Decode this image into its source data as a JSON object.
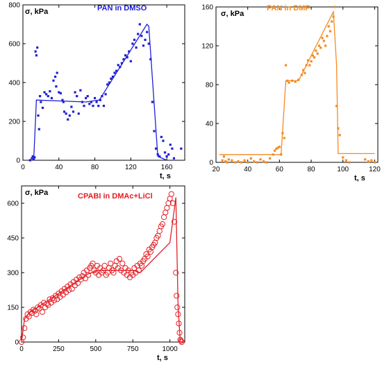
{
  "chart_data": [
    {
      "type": "scatter",
      "title": "PAN in DMSO",
      "xlabel": "t, s",
      "ylabel": "σ, kPa",
      "xlim": [
        0,
        180
      ],
      "ylim": [
        0,
        800
      ],
      "xticks": [
        0,
        40,
        80,
        120,
        160
      ],
      "yticks": [
        0,
        200,
        400,
        600,
        800
      ],
      "color": "#1f1fd6",
      "marker": "square",
      "grid": false,
      "series": [
        {
          "kind": "points",
          "x": [
            8,
            10,
            11,
            12,
            13,
            14,
            15,
            16,
            17,
            18,
            19,
            20,
            22,
            24,
            26,
            28,
            30,
            32,
            34,
            36,
            37,
            38,
            40,
            42,
            44,
            45,
            46,
            48,
            50,
            52,
            54,
            56,
            58,
            60,
            62,
            64,
            66,
            68,
            70,
            72,
            74,
            76,
            78,
            80,
            82,
            84,
            86,
            88,
            90,
            92,
            94,
            96,
            98,
            100,
            102,
            104,
            106,
            108,
            110,
            112,
            114,
            116,
            118,
            120,
            122,
            124,
            126,
            128,
            130,
            132,
            134,
            136,
            138,
            140,
            142,
            144,
            146,
            148,
            150,
            152,
            154,
            156,
            158,
            160,
            162,
            164,
            166,
            168,
            176
          ],
          "y": [
            0,
            10,
            20,
            5,
            15,
            560,
            540,
            580,
            230,
            160,
            330,
            300,
            270,
            350,
            340,
            330,
            355,
            320,
            410,
            430,
            380,
            450,
            350,
            345,
            310,
            300,
            250,
            240,
            210,
            230,
            275,
            250,
            350,
            330,
            240,
            360,
            300,
            280,
            320,
            330,
            290,
            300,
            280,
            320,
            300,
            280,
            310,
            330,
            280,
            340,
            390,
            400,
            420,
            430,
            450,
            460,
            490,
            480,
            500,
            520,
            540,
            530,
            560,
            510,
            600,
            620,
            580,
            650,
            700,
            640,
            590,
            620,
            660,
            600,
            520,
            300,
            150,
            60,
            30,
            20,
            120,
            100,
            40,
            20,
            30,
            80,
            60,
            10,
            60
          ]
        },
        {
          "kind": "fit",
          "x": [
            12,
            15,
            70,
            85,
            138,
            140,
            150,
            160
          ],
          "y": [
            0,
            310,
            300,
            310,
            700,
            690,
            20,
            0
          ]
        }
      ]
    },
    {
      "type": "scatter",
      "title": "PAN in DMF",
      "xlabel": "t, s",
      "ylabel": "σ, kPa",
      "xlim": [
        20,
        122
      ],
      "ylim": [
        0,
        160
      ],
      "xticks": [
        20,
        40,
        60,
        80,
        100,
        120
      ],
      "yticks": [
        0,
        40,
        80,
        120,
        160
      ],
      "color": "#f58a1f",
      "marker": "square",
      "grid": false,
      "series": [
        {
          "kind": "points",
          "x": [
            24,
            25,
            26,
            27,
            28,
            30,
            32,
            34,
            36,
            38,
            40,
            42,
            44,
            46,
            48,
            50,
            52,
            54,
            56,
            57,
            58,
            59,
            60,
            61,
            62,
            63,
            64,
            65,
            66,
            68,
            70,
            72,
            74,
            75,
            76,
            77,
            78,
            79,
            80,
            81,
            82,
            83,
            84,
            85,
            86,
            87,
            88,
            89,
            90,
            91,
            92,
            93,
            94,
            95,
            96,
            97,
            98,
            100,
            102,
            104,
            114,
            116,
            118,
            120
          ],
          "y": [
            2,
            6,
            1,
            0,
            3,
            2,
            0,
            1,
            0,
            2,
            0,
            4,
            1,
            0,
            3,
            1,
            0,
            4,
            8,
            12,
            14,
            15,
            16,
            8,
            30,
            25,
            100,
            84,
            82,
            84,
            83,
            85,
            90,
            95,
            92,
            100,
            105,
            100,
            104,
            110,
            108,
            115,
            112,
            120,
            118,
            128,
            125,
            120,
            130,
            140,
            135,
            145,
            150,
            160,
            58,
            35,
            28,
            5,
            2,
            0,
            3,
            1,
            2,
            0
          ]
        },
        {
          "kind": "fit",
          "x": [
            22,
            61,
            64,
            72,
            94,
            96,
            97,
            120
          ],
          "y": [
            8,
            8,
            84,
            84,
            155,
            100,
            9,
            9
          ]
        }
      ]
    },
    {
      "type": "scatter",
      "title": "CPABI in DMAc+LiCl",
      "xlabel": "t, s",
      "ylabel": "σ, kPa",
      "xlim": [
        0,
        1100
      ],
      "ylim": [
        0,
        675
      ],
      "xticks": [
        0,
        250,
        500,
        750,
        1000
      ],
      "yticks": [
        0,
        150,
        300,
        450,
        600
      ],
      "color": "#e31e24",
      "marker": "circle-open",
      "grid": false,
      "series": [
        {
          "kind": "points",
          "x": [
            0,
            10,
            20,
            30,
            40,
            50,
            60,
            70,
            80,
            90,
            100,
            110,
            120,
            130,
            140,
            150,
            160,
            170,
            180,
            190,
            200,
            210,
            220,
            230,
            240,
            250,
            260,
            270,
            280,
            290,
            300,
            310,
            320,
            330,
            340,
            350,
            360,
            370,
            380,
            390,
            400,
            410,
            420,
            430,
            440,
            450,
            460,
            470,
            480,
            490,
            500,
            510,
            520,
            530,
            540,
            550,
            560,
            570,
            580,
            590,
            600,
            610,
            620,
            630,
            640,
            650,
            660,
            670,
            680,
            690,
            700,
            710,
            720,
            730,
            740,
            750,
            760,
            770,
            780,
            790,
            800,
            810,
            820,
            830,
            840,
            850,
            860,
            870,
            880,
            890,
            900,
            910,
            920,
            930,
            940,
            950,
            960,
            970,
            980,
            990,
            1000,
            1010,
            1020,
            1030,
            1040,
            1045,
            1050,
            1055,
            1060,
            1065,
            1070,
            1075,
            1080
          ],
          "y": [
            0,
            20,
            60,
            100,
            120,
            110,
            130,
            125,
            140,
            135,
            120,
            150,
            145,
            160,
            130,
            170,
            150,
            165,
            160,
            185,
            170,
            190,
            180,
            200,
            185,
            210,
            195,
            220,
            205,
            230,
            215,
            240,
            225,
            250,
            230,
            260,
            245,
            270,
            255,
            280,
            270,
            285,
            300,
            275,
            310,
            290,
            320,
            330,
            340,
            310,
            300,
            330,
            290,
            320,
            300,
            310,
            330,
            290,
            300,
            320,
            340,
            310,
            300,
            330,
            350,
            320,
            360,
            310,
            340,
            300,
            320,
            290,
            310,
            280,
            300,
            290,
            320,
            300,
            330,
            310,
            340,
            330,
            350,
            360,
            380,
            370,
            400,
            390,
            410,
            420,
            430,
            450,
            460,
            480,
            500,
            510,
            540,
            560,
            580,
            600,
            620,
            640,
            600,
            520,
            300,
            200,
            150,
            120,
            80,
            40,
            10,
            5,
            0
          ]
        },
        {
          "kind": "fit",
          "x": [
            0,
            20,
            50,
            450,
            520,
            750,
            800,
            1000,
            1040,
            1055,
            1070
          ],
          "y": [
            0,
            100,
            125,
            295,
            310,
            310,
            300,
            430,
            625,
            155,
            0
          ]
        }
      ]
    }
  ]
}
